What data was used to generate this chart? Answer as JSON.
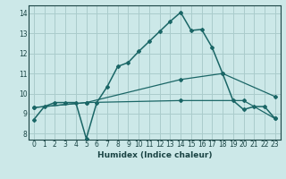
{
  "xlabel": "Humidex (Indice chaleur)",
  "bg_color": "#cce8e8",
  "grid_color": "#aacccc",
  "line_color": "#1a6666",
  "xlim": [
    -0.5,
    23.5
  ],
  "ylim": [
    7.7,
    14.4
  ],
  "yticks": [
    8,
    9,
    10,
    11,
    12,
    13,
    14
  ],
  "xticks": [
    0,
    1,
    2,
    3,
    4,
    5,
    6,
    7,
    8,
    9,
    10,
    11,
    12,
    13,
    14,
    15,
    16,
    17,
    18,
    19,
    20,
    21,
    22,
    23
  ],
  "line1_x": [
    0,
    1,
    2,
    3,
    4,
    5,
    6,
    7,
    8,
    9,
    10,
    11,
    12,
    13,
    14,
    15,
    16,
    17,
    18,
    19,
    20,
    21,
    22,
    23
  ],
  "line1_y": [
    8.7,
    9.35,
    9.55,
    9.55,
    9.55,
    7.75,
    9.55,
    10.35,
    11.35,
    11.55,
    12.1,
    12.6,
    13.1,
    13.6,
    14.05,
    13.15,
    13.2,
    12.3,
    11.0,
    9.65,
    9.2,
    9.35,
    9.35,
    8.75
  ],
  "line2_x": [
    0,
    5,
    14,
    18,
    23
  ],
  "line2_y": [
    9.3,
    9.55,
    10.7,
    11.0,
    9.85
  ],
  "line3_x": [
    0,
    5,
    14,
    20,
    23
  ],
  "line3_y": [
    9.3,
    9.55,
    9.65,
    9.65,
    8.75
  ]
}
